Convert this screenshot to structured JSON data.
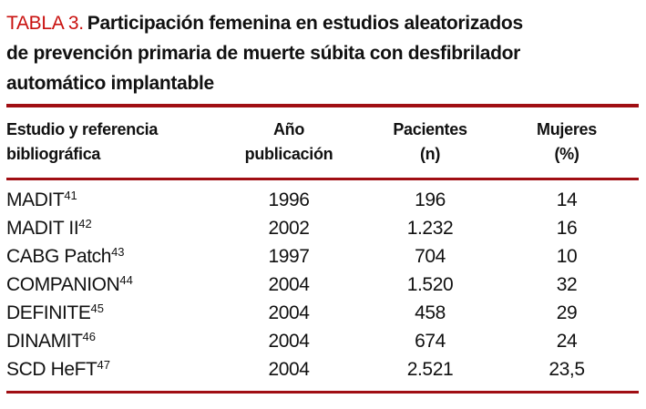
{
  "title": {
    "label": "TABLA 3.",
    "text": "Participación femenina en estudios aleatorizados de prevención primaria de muerte súbita con desfibrilador automático implantable"
  },
  "columns": {
    "study": {
      "line1": "Estudio y referencia",
      "line2": "bibliográfica"
    },
    "year": {
      "line1": "Año",
      "line2": "publicación"
    },
    "patients": {
      "line1": "Pacientes",
      "line2": "(n)"
    },
    "women": {
      "line1": "Mujeres",
      "line2": "(%)"
    }
  },
  "rows": [
    {
      "study": "MADIT",
      "ref": "41",
      "year": "1996",
      "patients": "196",
      "women": "14"
    },
    {
      "study": "MADIT II",
      "ref": "42",
      "year": "2002",
      "patients": "1.232",
      "women": "16"
    },
    {
      "study": "CABG Patch",
      "ref": "43",
      "year": "1997",
      "patients": "704",
      "women": "10"
    },
    {
      "study": "COMPANION",
      "ref": "44",
      "year": "2004",
      "patients": "1.520",
      "women": "32"
    },
    {
      "study": "DEFINITE",
      "ref": "45",
      "year": "2004",
      "patients": "458",
      "women": "29"
    },
    {
      "study": "DINAMIT",
      "ref": "46",
      "year": "2004",
      "patients": "674",
      "women": "24"
    },
    {
      "study": "SCD HeFT",
      "ref": "47",
      "year": "2004",
      "patients": "2.521",
      "women": "23,5"
    }
  ],
  "colors": {
    "title_red": "#c9110f",
    "rule_red": "#a00e13",
    "text_black": "#111111"
  }
}
